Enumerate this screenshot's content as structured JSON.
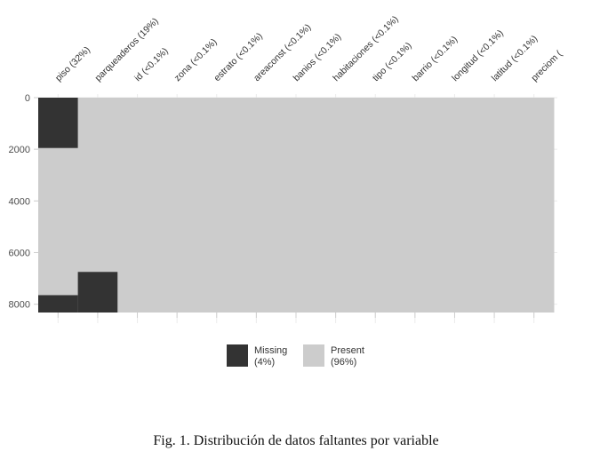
{
  "chart_data": {
    "type": "heatmap",
    "columns": [
      {
        "label": "piso (32%)",
        "missing_ranges": [
          [
            0,
            1950
          ],
          [
            7650,
            8322
          ]
        ]
      },
      {
        "label": "parqueaderos (19%)",
        "missing_ranges": [
          [
            6750,
            8322
          ]
        ]
      },
      {
        "label": "id (<0.1%)",
        "missing_ranges": []
      },
      {
        "label": "zona (<0.1%)",
        "missing_ranges": []
      },
      {
        "label": "estrato (<0.1%)",
        "missing_ranges": []
      },
      {
        "label": "areaconst (<0.1%)",
        "missing_ranges": []
      },
      {
        "label": "banios (<0.1%)",
        "missing_ranges": []
      },
      {
        "label": "habitaciones (<0.1%)",
        "missing_ranges": []
      },
      {
        "label": "tipo (<0.1%)",
        "missing_ranges": []
      },
      {
        "label": "barrio (<0.1%)",
        "missing_ranges": []
      },
      {
        "label": "longitud (<0.1%)",
        "missing_ranges": []
      },
      {
        "label": "latitud (<0.1%)",
        "missing_ranges": []
      },
      {
        "label": "preciom (",
        "missing_ranges": []
      }
    ],
    "n_rows": 8322,
    "ylim": [
      0,
      8322
    ],
    "y_ticks": [
      0,
      2000,
      4000,
      6000,
      8000
    ],
    "y_reversed": true,
    "grid": true,
    "legend": {
      "position": "bottom",
      "items": [
        {
          "label": "Missing",
          "sub": "(4%)",
          "color": "#333333"
        },
        {
          "label": "Present",
          "sub": "(96%)",
          "color": "#cccccc"
        }
      ]
    }
  },
  "caption": "Fig. 1.  Distribución de datos faltantes por variable"
}
